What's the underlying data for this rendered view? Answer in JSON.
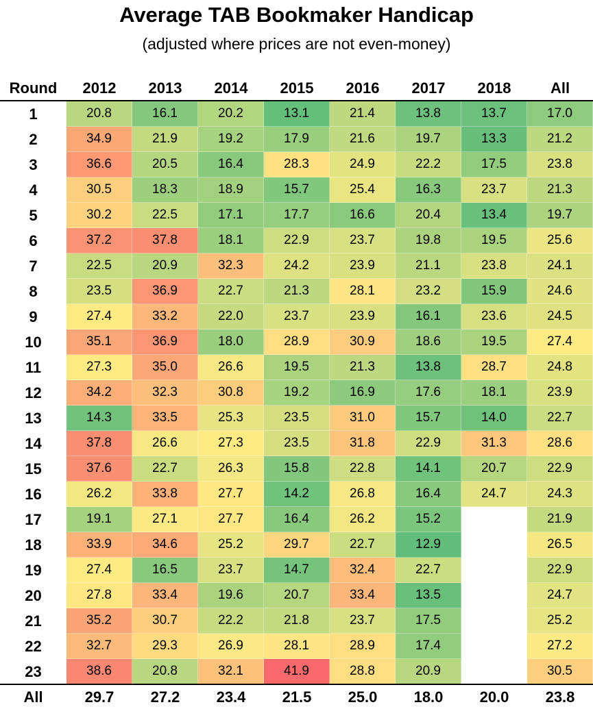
{
  "chart_data": {
    "type": "heatmap",
    "title": "Average TAB Bookmaker Handicap",
    "subtitle": "(adjusted where prices are not even-money)",
    "row_header": "Round",
    "columns": [
      "2012",
      "2013",
      "2014",
      "2015",
      "2016",
      "2017",
      "2018",
      "All"
    ],
    "rows": [
      "1",
      "2",
      "3",
      "4",
      "5",
      "6",
      "7",
      "8",
      "9",
      "10",
      "11",
      "12",
      "13",
      "14",
      "15",
      "16",
      "17",
      "18",
      "19",
      "20",
      "21",
      "22",
      "23"
    ],
    "values": [
      [
        20.8,
        16.1,
        20.2,
        13.1,
        21.4,
        13.8,
        13.7,
        17.0
      ],
      [
        34.9,
        21.9,
        19.2,
        17.9,
        21.6,
        19.7,
        13.3,
        21.2
      ],
      [
        36.6,
        20.5,
        16.4,
        28.3,
        24.9,
        22.2,
        17.5,
        23.8
      ],
      [
        30.5,
        18.3,
        18.9,
        15.7,
        25.4,
        16.3,
        23.7,
        21.3
      ],
      [
        30.2,
        22.5,
        17.1,
        17.7,
        16.6,
        20.4,
        13.4,
        19.7
      ],
      [
        37.2,
        37.8,
        18.1,
        22.9,
        23.7,
        19.8,
        19.5,
        25.6
      ],
      [
        22.5,
        20.9,
        32.3,
        24.2,
        23.9,
        21.1,
        23.8,
        24.1
      ],
      [
        23.5,
        36.9,
        22.7,
        21.3,
        28.1,
        23.2,
        15.9,
        24.6
      ],
      [
        27.4,
        33.2,
        22.0,
        23.7,
        23.9,
        16.1,
        23.6,
        24.5
      ],
      [
        35.1,
        36.9,
        18.0,
        28.9,
        30.9,
        18.6,
        19.5,
        27.4
      ],
      [
        27.3,
        35.0,
        26.6,
        19.5,
        21.3,
        13.8,
        28.7,
        24.8
      ],
      [
        34.2,
        32.3,
        30.8,
        19.2,
        16.9,
        17.6,
        18.1,
        23.9
      ],
      [
        14.3,
        33.5,
        25.3,
        23.5,
        31.0,
        15.7,
        14.0,
        22.7
      ],
      [
        37.8,
        26.6,
        27.3,
        23.5,
        31.8,
        22.9,
        31.3,
        28.6
      ],
      [
        37.6,
        22.7,
        26.3,
        15.8,
        22.8,
        14.1,
        20.7,
        22.9
      ],
      [
        26.2,
        33.8,
        27.7,
        14.2,
        26.8,
        16.4,
        24.7,
        24.3
      ],
      [
        19.1,
        27.1,
        27.7,
        16.4,
        26.2,
        15.2,
        null,
        21.9
      ],
      [
        33.9,
        34.6,
        25.2,
        29.7,
        22.7,
        12.9,
        null,
        26.5
      ],
      [
        27.4,
        16.5,
        23.7,
        14.7,
        32.4,
        22.7,
        null,
        22.9
      ],
      [
        27.8,
        33.4,
        19.6,
        20.7,
        33.4,
        13.5,
        null,
        24.7
      ],
      [
        35.2,
        30.7,
        22.2,
        21.8,
        23.7,
        17.5,
        null,
        25.2
      ],
      [
        32.7,
        29.3,
        26.9,
        28.1,
        28.9,
        17.4,
        null,
        27.2
      ],
      [
        38.6,
        20.8,
        32.1,
        41.9,
        28.8,
        20.9,
        null,
        30.5
      ]
    ],
    "total_row_label": "All",
    "totals": [
      29.7,
      27.2,
      23.4,
      21.5,
      25.0,
      18.0,
      20.0,
      23.8
    ],
    "color_scale": {
      "low": "#63be7b",
      "mid": "#ffeb84",
      "high": "#f8696b",
      "min": 12.9,
      "max": 41.9
    }
  }
}
